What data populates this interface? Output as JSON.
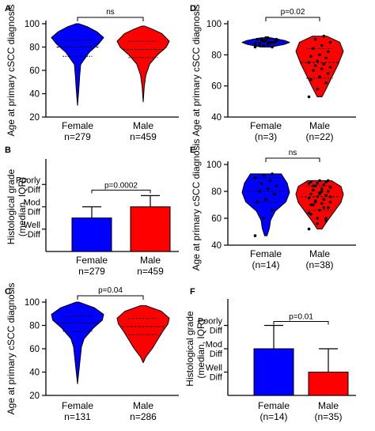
{
  "chart_data": [
    {
      "panel": "A",
      "type": "violin",
      "ylabel": "Age at primary cSCC diagnosis",
      "ylim": [
        20,
        100
      ],
      "yticks": [
        "20",
        "40",
        "60",
        "80",
        "100"
      ],
      "categories": [
        "Female\nn=279",
        "Male\nn=459"
      ],
      "colors": [
        "#0000ff",
        "#ff0000"
      ],
      "annotation": "ns",
      "medians": [
        80,
        78
      ],
      "quartiles": [
        [
          72,
          86
        ],
        [
          71,
          85
        ]
      ],
      "ranges": [
        [
          30,
          100
        ],
        [
          33,
          98
        ]
      ]
    },
    {
      "panel": "B",
      "type": "bar",
      "ylabel": "Histological grade\n(median, IQR)",
      "ylim": [
        0,
        4
      ],
      "yticks": [
        "Well\nDiff",
        "Mod\nDiff",
        "Poorly\nDiff"
      ],
      "categories": [
        "Female\nn=279",
        "Male\nn=459"
      ],
      "colors": [
        "#0000ff",
        "#ff0000"
      ],
      "values": [
        1.5,
        2
      ],
      "error_upper": [
        2,
        2.5
      ],
      "annotation": "p=0.0002"
    },
    {
      "panel": "C",
      "type": "violin",
      "ylabel": "Age at primary cSCC diagnosis",
      "ylim": [
        20,
        100
      ],
      "yticks": [
        "20",
        "40",
        "60",
        "80",
        "100"
      ],
      "categories": [
        "Female\nn=131",
        "Male\nn=286"
      ],
      "colors": [
        "#0000ff",
        "#ff0000"
      ],
      "annotation": "p=0.04",
      "medians": [
        82,
        79
      ],
      "quartiles": [
        [
          75,
          88
        ],
        [
          72,
          86
        ]
      ],
      "ranges": [
        [
          30,
          100
        ],
        [
          48,
          97
        ]
      ]
    },
    {
      "panel": "D",
      "type": "violin",
      "ylabel": "Age at primary cSCC diagnosis",
      "ylim": [
        40,
        100
      ],
      "yticks": [
        "40",
        "60",
        "80",
        "100"
      ],
      "categories": [
        "Female\n(n=3)",
        "Male\n(n=22)"
      ],
      "colors": [
        "#0000ff",
        "#ff0000"
      ],
      "annotation": "p=0.02",
      "medians": [
        88,
        75
      ],
      "quartiles": [
        [
          86,
          90
        ],
        [
          65,
          84
        ]
      ],
      "ranges": [
        [
          85,
          91
        ],
        [
          53,
          92
        ]
      ]
    },
    {
      "panel": "E",
      "type": "violin",
      "ylabel": "Age at primary cSCC diagnosis",
      "ylim": [
        40,
        100
      ],
      "yticks": [
        "40",
        "60",
        "80",
        "100"
      ],
      "categories": [
        "Female\n(n=14)",
        "Male\n(n=38)"
      ],
      "colors": [
        "#0000ff",
        "#ff0000"
      ],
      "annotation": "ns",
      "medians": [
        80,
        76
      ],
      "quartiles": [
        [
          72,
          90
        ],
        [
          66,
          84
        ]
      ],
      "ranges": [
        [
          47,
          93
        ],
        [
          52,
          88
        ]
      ]
    },
    {
      "panel": "F",
      "type": "bar",
      "ylabel": "Histological grade\n(median, IQR)",
      "ylim": [
        0,
        4
      ],
      "yticks": [
        "Well\nDiff",
        "Mod\nDiff",
        "Poorly\nDiff"
      ],
      "categories": [
        "Female\n(n=14)",
        "Male\n(n=35)"
      ],
      "colors": [
        "#0000ff",
        "#ff0000"
      ],
      "values": [
        2,
        1
      ],
      "error_upper": [
        3,
        2
      ],
      "annotation": "p=0.01"
    }
  ]
}
